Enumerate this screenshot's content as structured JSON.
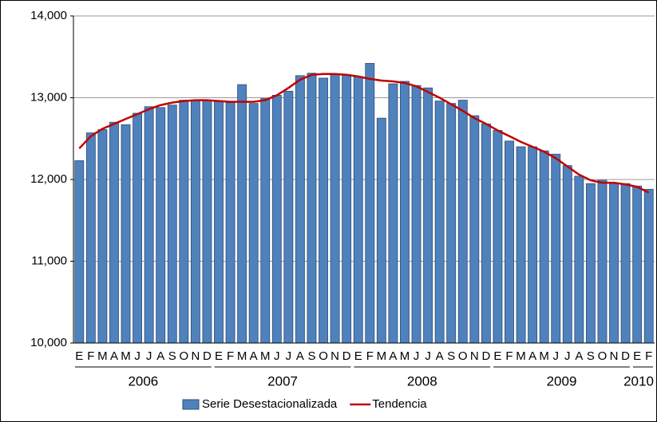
{
  "chart_data": {
    "type": "bar",
    "categories": [
      "E",
      "F",
      "M",
      "A",
      "M",
      "J",
      "J",
      "A",
      "S",
      "O",
      "N",
      "D",
      "E",
      "F",
      "M",
      "A",
      "M",
      "J",
      "J",
      "A",
      "S",
      "O",
      "N",
      "D",
      "E",
      "F",
      "M",
      "A",
      "M",
      "J",
      "J",
      "A",
      "S",
      "O",
      "N",
      "D",
      "E",
      "F",
      "M",
      "A",
      "M",
      "J",
      "J",
      "A",
      "S",
      "O",
      "N",
      "D",
      "E",
      "F"
    ],
    "years": [
      "2006",
      "2007",
      "2008",
      "2009",
      "2010"
    ],
    "series": [
      {
        "name": "Serie Desestacionalizada",
        "color": "#4f81bd",
        "kind": "bar",
        "values": [
          12230,
          12570,
          12610,
          12700,
          12670,
          12810,
          12890,
          12880,
          12910,
          12970,
          12960,
          12960,
          12960,
          12940,
          13160,
          12930,
          12990,
          13030,
          13080,
          13270,
          13300,
          13240,
          13290,
          13280,
          13260,
          13420,
          12750,
          13170,
          13200,
          13150,
          13120,
          12960,
          12930,
          12970,
          12780,
          12680,
          12600,
          12470,
          12400,
          12400,
          12350,
          12310,
          12170,
          12040,
          11950,
          11990,
          11960,
          11950,
          11920,
          11880
        ]
      },
      {
        "name": "Tendencia",
        "color": "#c00000",
        "kind": "line",
        "values": [
          12380,
          12530,
          12620,
          12680,
          12740,
          12800,
          12860,
          12910,
          12940,
          12960,
          12970,
          12970,
          12960,
          12950,
          12950,
          12950,
          12970,
          13030,
          13120,
          13220,
          13280,
          13290,
          13290,
          13280,
          13260,
          13230,
          13210,
          13200,
          13180,
          13140,
          13070,
          13000,
          12920,
          12840,
          12750,
          12680,
          12600,
          12530,
          12460,
          12400,
          12340,
          12260,
          12160,
          12060,
          11990,
          11960,
          11960,
          11940,
          11910,
          11840
        ]
      }
    ],
    "ylim": [
      10000,
      14000
    ],
    "yticks": [
      {
        "value": 10000,
        "label": "10,000"
      },
      {
        "value": 11000,
        "label": "11,000"
      },
      {
        "value": 12000,
        "label": "12,000"
      },
      {
        "value": 13000,
        "label": "13,000"
      },
      {
        "value": 14000,
        "label": "14,000"
      }
    ],
    "grid": true
  }
}
